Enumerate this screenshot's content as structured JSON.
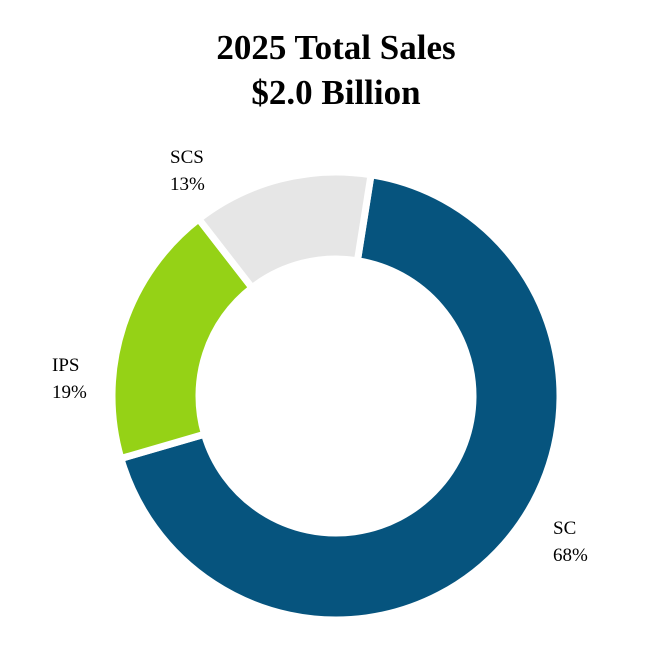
{
  "chart_data": {
    "type": "pie",
    "style": "donut",
    "title_line1": "2025 Total Sales",
    "title_line2": "$2.0 Billion",
    "slices": [
      {
        "label": "SC",
        "percent_label": "68%",
        "value": 68,
        "color": "#06547e"
      },
      {
        "label": "IPS",
        "percent_label": "19%",
        "value": 19,
        "color": "#95d216"
      },
      {
        "label": "SCS",
        "percent_label": "13%",
        "value": 13,
        "color": "#e6e6e6"
      }
    ]
  }
}
